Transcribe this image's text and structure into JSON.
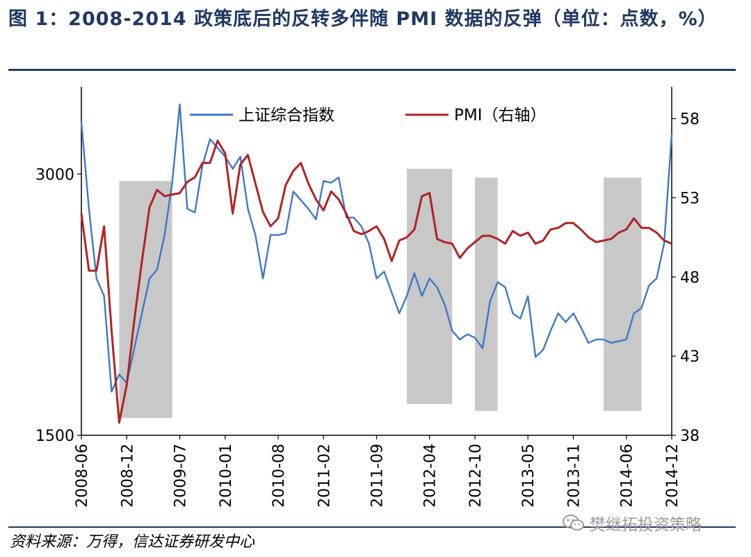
{
  "header": {
    "title": "图 1：2008-2014 政策底后的反转多伴随 PMI 数据的反弹（单位：点数，%）"
  },
  "footer": {
    "source": "资料来源：万得，信达证券研发中心",
    "watermark": "樊继拓投资策略",
    "watermark_icon": "wechat-icon"
  },
  "colors": {
    "index_line": "#3c78c8",
    "pmi_line": "#b22222",
    "shade": "#c8c8c8",
    "title": "#1f3864"
  },
  "chart_data": {
    "type": "line",
    "x_ticks": [
      "2008-06",
      "2008-12",
      "2009-07",
      "2010-01",
      "2010-08",
      "2011-02",
      "2011-09",
      "2012-04",
      "2012-10",
      "2013-05",
      "2013-11",
      "2014-06",
      "2014-12"
    ],
    "legend": {
      "placement": "top",
      "entries": [
        "上证综合指数",
        "PMI（右轴）"
      ]
    },
    "y_left": {
      "range": [
        1500,
        3500
      ],
      "ticks": [
        1500,
        3000
      ],
      "unit": "点数"
    },
    "y_right": {
      "range": [
        38,
        60
      ],
      "ticks": [
        38,
        43,
        48,
        53,
        58
      ],
      "unit": "%"
    },
    "grid": false,
    "shaded_periods": [
      [
        "2008-11",
        "2009-06"
      ],
      [
        "2012-01",
        "2012-07"
      ],
      [
        "2012-10",
        "2013-01"
      ],
      [
        "2014-03",
        "2014-08"
      ]
    ],
    "series": [
      {
        "name": "上证综合指数",
        "axis": "left",
        "x": [
          "2008-06",
          "2008-07",
          "2008-08",
          "2008-09",
          "2008-10",
          "2008-11",
          "2008-12",
          "2009-01",
          "2009-02",
          "2009-03",
          "2009-04",
          "2009-05",
          "2009-06",
          "2009-07",
          "2009-08",
          "2009-09",
          "2009-10",
          "2009-11",
          "2009-12",
          "2010-01",
          "2010-02",
          "2010-03",
          "2010-04",
          "2010-05",
          "2010-06",
          "2010-07",
          "2010-08",
          "2010-09",
          "2010-10",
          "2010-11",
          "2010-12",
          "2011-01",
          "2011-02",
          "2011-03",
          "2011-04",
          "2011-05",
          "2011-06",
          "2011-07",
          "2011-08",
          "2011-09",
          "2011-10",
          "2011-11",
          "2011-12",
          "2012-01",
          "2012-02",
          "2012-03",
          "2012-04",
          "2012-05",
          "2012-06",
          "2012-07",
          "2012-08",
          "2012-09",
          "2012-10",
          "2012-11",
          "2012-12",
          "2013-01",
          "2013-02",
          "2013-03",
          "2013-04",
          "2013-05",
          "2013-06",
          "2013-07",
          "2013-08",
          "2013-09",
          "2013-10",
          "2013-11",
          "2013-12",
          "2014-01",
          "2014-02",
          "2014-03",
          "2014-04",
          "2014-05",
          "2014-06",
          "2014-07",
          "2014-08",
          "2014-09",
          "2014-10",
          "2014-11",
          "2014-12"
        ],
        "values": [
          3300,
          2800,
          2400,
          2300,
          1750,
          1850,
          1800,
          2000,
          2200,
          2400,
          2450,
          2650,
          2950,
          3400,
          2800,
          2780,
          3050,
          3200,
          3150,
          3100,
          3030,
          3100,
          2800,
          2650,
          2400,
          2650,
          2650,
          2660,
          2900,
          2850,
          2800,
          2740,
          2960,
          2950,
          2980,
          2750,
          2750,
          2700,
          2600,
          2400,
          2440,
          2320,
          2200,
          2300,
          2430,
          2300,
          2400,
          2350,
          2250,
          2100,
          2050,
          2080,
          2060,
          2000,
          2270,
          2380,
          2350,
          2200,
          2170,
          2300,
          1950,
          1990,
          2100,
          2200,
          2150,
          2200,
          2120,
          2030,
          2050,
          2050,
          2030,
          2040,
          2050,
          2200,
          2230,
          2360,
          2400,
          2600,
          3230
        ]
      },
      {
        "name": "PMI（右轴）",
        "axis": "right",
        "x": [
          "2008-06",
          "2008-07",
          "2008-08",
          "2008-09",
          "2008-10",
          "2008-11",
          "2008-12",
          "2009-01",
          "2009-02",
          "2009-03",
          "2009-04",
          "2009-05",
          "2009-06",
          "2009-07",
          "2009-08",
          "2009-09",
          "2009-10",
          "2009-11",
          "2009-12",
          "2010-01",
          "2010-02",
          "2010-03",
          "2010-04",
          "2010-05",
          "2010-06",
          "2010-07",
          "2010-08",
          "2010-09",
          "2010-10",
          "2010-11",
          "2010-12",
          "2011-01",
          "2011-02",
          "2011-03",
          "2011-04",
          "2011-05",
          "2011-06",
          "2011-07",
          "2011-08",
          "2011-09",
          "2011-10",
          "2011-11",
          "2011-12",
          "2012-01",
          "2012-02",
          "2012-03",
          "2012-04",
          "2012-05",
          "2012-06",
          "2012-07",
          "2012-08",
          "2012-09",
          "2012-10",
          "2012-11",
          "2012-12",
          "2013-01",
          "2013-02",
          "2013-03",
          "2013-04",
          "2013-05",
          "2013-06",
          "2013-07",
          "2013-08",
          "2013-09",
          "2013-10",
          "2013-11",
          "2013-12",
          "2014-01",
          "2014-02",
          "2014-03",
          "2014-04",
          "2014-05",
          "2014-06",
          "2014-07",
          "2014-08",
          "2014-09",
          "2014-10",
          "2014-11",
          "2014-12"
        ],
        "values": [
          52.0,
          48.4,
          48.4,
          51.2,
          44.6,
          38.8,
          41.2,
          45.3,
          49.0,
          52.4,
          53.5,
          53.1,
          53.2,
          53.3,
          54.0,
          54.3,
          55.2,
          55.2,
          56.6,
          55.8,
          52.0,
          55.1,
          55.7,
          53.9,
          52.1,
          51.2,
          51.7,
          53.8,
          54.7,
          55.2,
          53.9,
          52.9,
          52.2,
          53.4,
          52.9,
          52.0,
          50.9,
          50.7,
          50.9,
          51.2,
          50.4,
          49.0,
          50.3,
          50.5,
          51.0,
          53.1,
          53.3,
          50.4,
          50.2,
          50.1,
          49.2,
          49.8,
          50.2,
          50.6,
          50.6,
          50.4,
          50.1,
          50.9,
          50.6,
          50.8,
          50.1,
          50.3,
          51.0,
          51.1,
          51.4,
          51.4,
          51.0,
          50.5,
          50.2,
          50.3,
          50.4,
          50.8,
          51.0,
          51.7,
          51.1,
          51.1,
          50.8,
          50.3,
          50.1
        ]
      }
    ]
  }
}
